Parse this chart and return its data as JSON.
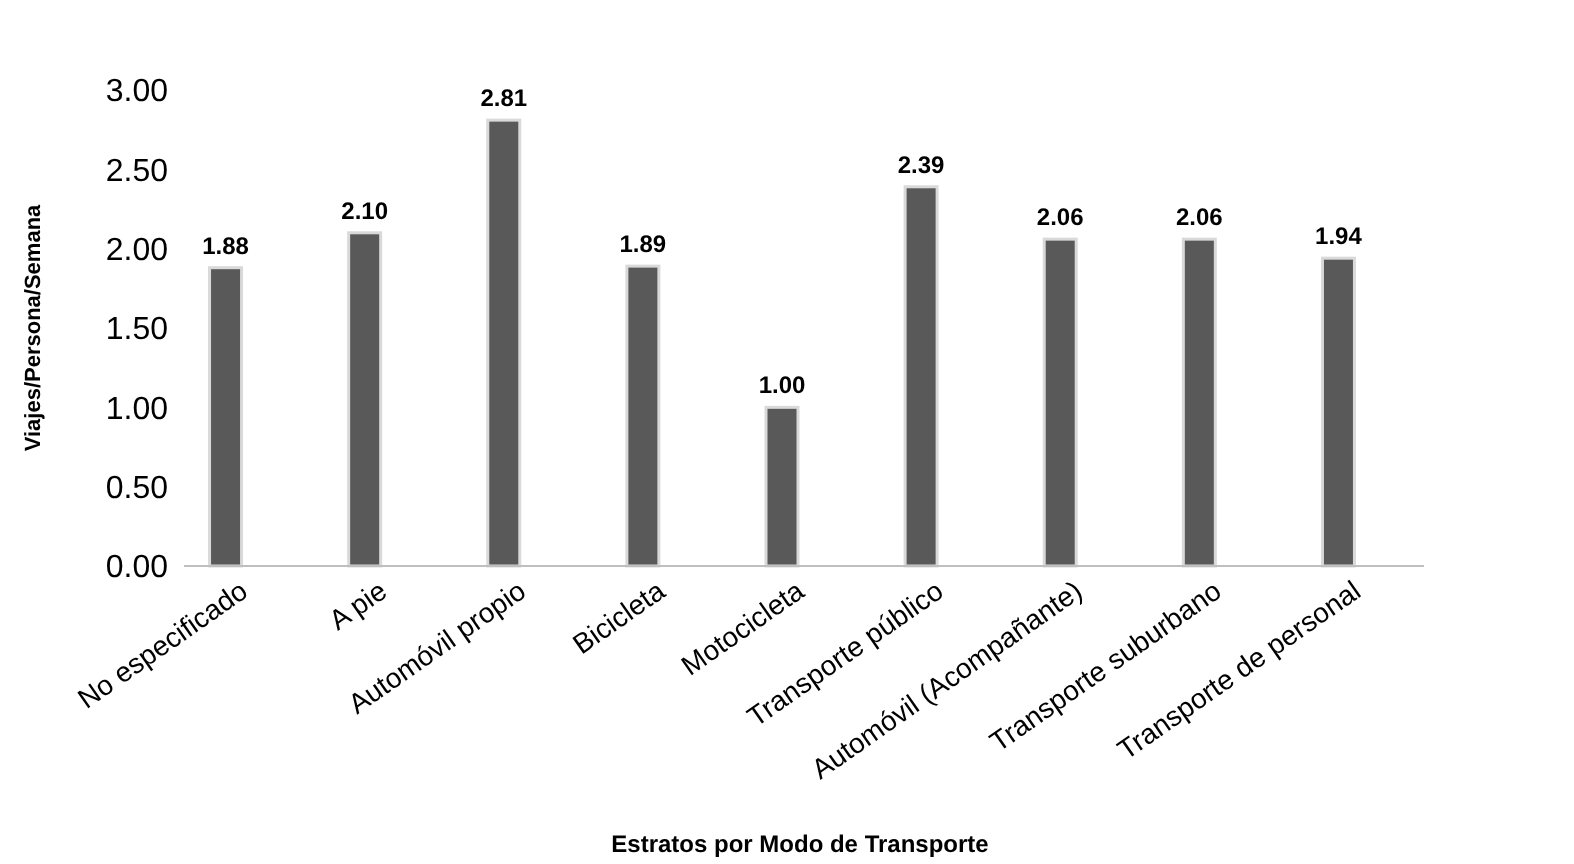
{
  "chart_data": {
    "type": "bar",
    "xlabel": "Estratos por Modo de Transporte",
    "ylabel": "Viajes/Persona/Semana",
    "categories": [
      "No especificado",
      "A pie",
      "Automóvil propio",
      "Bicicleta",
      "Motocicleta",
      "Transporte público",
      "Automóvil (Acompañante)",
      "Transporte suburbano",
      "Transporte de personal"
    ],
    "values": [
      1.88,
      2.1,
      2.81,
      1.89,
      1.0,
      2.39,
      2.06,
      2.06,
      1.94
    ],
    "value_labels": [
      "1.88",
      "2.10",
      "2.81",
      "1.89",
      "1.00",
      "2.39",
      "2.06",
      "2.06",
      "1.94"
    ],
    "color": "#595959",
    "ylim": [
      0,
      3
    ],
    "yticks": [
      {
        "value": 0,
        "label": "0.00"
      },
      {
        "value": 0.5,
        "label": "0.50"
      },
      {
        "value": 1,
        "label": "1.00"
      },
      {
        "value": 1.5,
        "label": "1.50"
      },
      {
        "value": 2,
        "label": "2.00"
      },
      {
        "value": 2.5,
        "label": "2.50"
      },
      {
        "value": 3,
        "label": "3.00"
      }
    ],
    "grid": false
  }
}
